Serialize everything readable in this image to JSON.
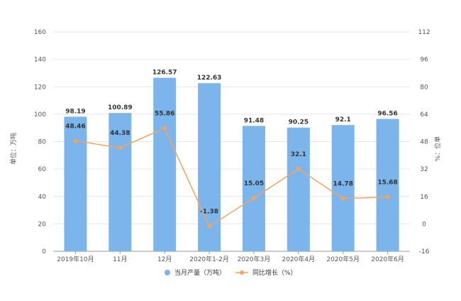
{
  "chart_data": {
    "type": "bar",
    "categories": [
      "2019年10月",
      "11月",
      "12月",
      "2020年1-2月",
      "2020年3月",
      "2020年4月",
      "2020年5月",
      "2020年6月"
    ],
    "series": [
      {
        "name": "当月产量（万吨）",
        "type": "bar",
        "axis": "left",
        "values": [
          98.19,
          100.89,
          126.57,
          122.63,
          91.48,
          90.25,
          92.1,
          96.56
        ],
        "labels": [
          "98.19",
          "100.89",
          "126.57",
          "122.63",
          "91.48",
          "90.25",
          "92.1",
          "96.56"
        ]
      },
      {
        "name": "同比增长（%）",
        "type": "line",
        "axis": "right",
        "values": [
          48.46,
          44.38,
          55.86,
          -1.38,
          15.05,
          32.1,
          14.78,
          15.68
        ],
        "labels": [
          "48.46",
          "44.38",
          "55.86",
          "-1.38",
          "15.05",
          "32.1",
          "14.78",
          "15.68"
        ]
      }
    ],
    "ylabel": "单位：万吨",
    "y2label": "%：位单",
    "ylim": [
      0,
      160
    ],
    "y2lim": [
      -16,
      112
    ],
    "yticks": [
      "0",
      "20",
      "40",
      "60",
      "80",
      "100",
      "120",
      "140",
      "160"
    ],
    "y2ticks": [
      "-16",
      "0",
      "16",
      "32",
      "48",
      "64",
      "80",
      "96",
      "112"
    ],
    "grid": true,
    "legend_position": "bottom-center",
    "colors": {
      "bar": "#7cb5ec",
      "line": "#f7a35c",
      "grid": "#e6e6e6",
      "axis": "#999999"
    }
  }
}
